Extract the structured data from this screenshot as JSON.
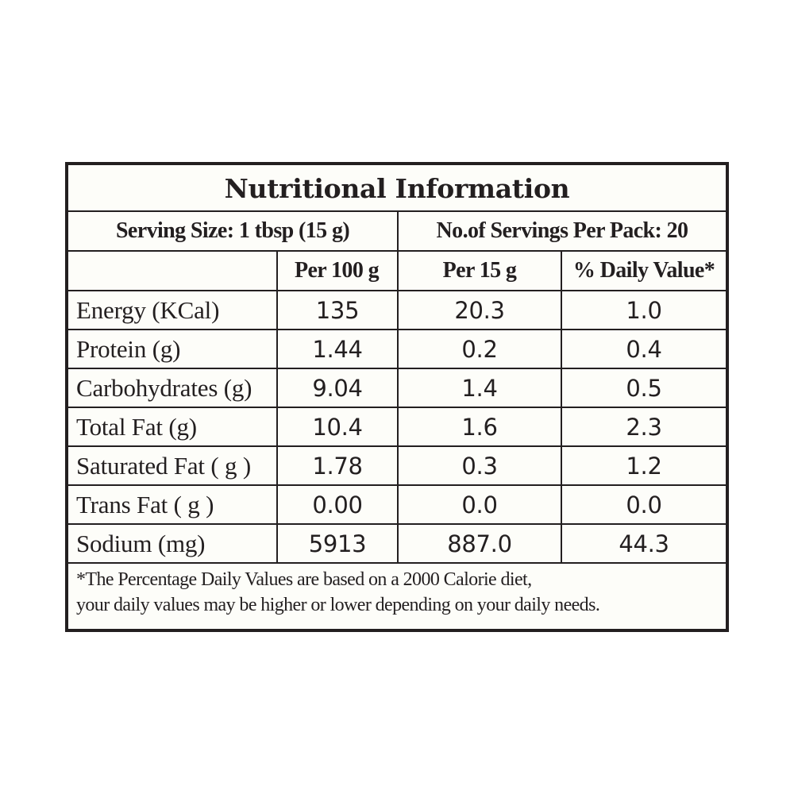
{
  "title": "Nutritional Information",
  "serving_size": "Serving Size: 1 tbsp (15 g)",
  "servings_per_pack": "No.of Servings Per Pack: 20",
  "columns": [
    "Per 100 g",
    "Per 15 g",
    "% Daily Value*"
  ],
  "rows": [
    {
      "nutrient": "Energy (KCal)",
      "per_100g": "135",
      "per_15g": "20.3",
      "daily_value": "1.0"
    },
    {
      "nutrient": "Protein (g)",
      "per_100g": "1.44",
      "per_15g": "0.2",
      "daily_value": "0.4"
    },
    {
      "nutrient": "Carbohydrates (g)",
      "per_100g": "9.04",
      "per_15g": "1.4",
      "daily_value": "0.5"
    },
    {
      "nutrient": "Total Fat (g)",
      "per_100g": "10.4",
      "per_15g": "1.6",
      "daily_value": "2.3"
    },
    {
      "nutrient": "Saturated Fat ( g )",
      "per_100g": "1.78",
      "per_15g": "0.3",
      "daily_value": "1.2"
    },
    {
      "nutrient": "Trans Fat ( g )",
      "per_100g": "0.00",
      "per_15g": "0.0",
      "daily_value": "0.0"
    },
    {
      "nutrient": "Sodium (mg)",
      "per_100g": "5913",
      "per_15g": "887.0",
      "daily_value": "44.3"
    }
  ],
  "footnote": {
    "line1": "*The Percentage Daily Values are based on a 2000 Calorie diet,",
    "line2": "your daily values may be higher or lower depending on your daily needs."
  }
}
